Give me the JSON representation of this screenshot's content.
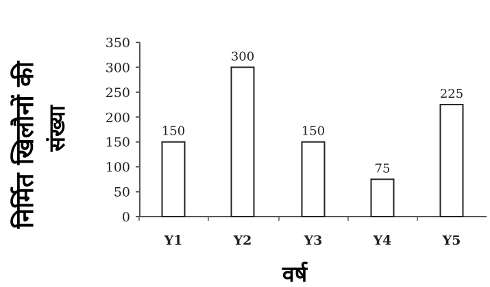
{
  "chart_data": {
    "type": "bar",
    "categories": [
      "Y1",
      "Y2",
      "Y3",
      "Y4",
      "Y5"
    ],
    "values": [
      150,
      300,
      150,
      75,
      225
    ],
    "data_labels": [
      "150",
      "300",
      "150",
      "75",
      "225"
    ],
    "xlabel": "वर्ष",
    "ylabel_line1": "निर्मित खिलौनों की",
    "ylabel_line2": "संख्या",
    "ylim": [
      0,
      350
    ],
    "yticks": [
      0,
      50,
      100,
      150,
      200,
      250,
      300,
      350
    ],
    "grid": false,
    "bar_fill": "#ffffff",
    "bar_stroke": "#222222"
  }
}
